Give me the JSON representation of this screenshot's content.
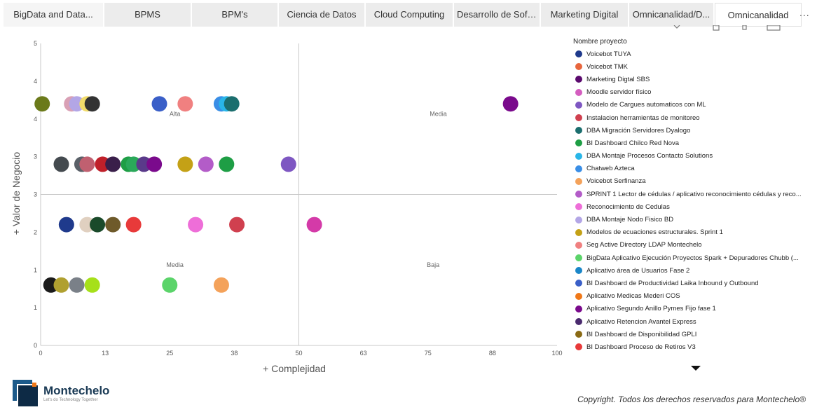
{
  "tabs": [
    {
      "label": "BigData and Data..."
    },
    {
      "label": "BPMS"
    },
    {
      "label": "BPM's"
    },
    {
      "label": "Ciencia de Datos"
    },
    {
      "label": "Cloud Computing"
    },
    {
      "label": "Desarrollo de Soft..."
    },
    {
      "label": "Marketing Digital"
    },
    {
      "label": "Omnicanalidad/D..."
    },
    {
      "label": "Omnicanalidad"
    }
  ],
  "more_label": "...",
  "legend": {
    "title": "Nombre proyecto",
    "items": [
      {
        "label": "Voicebot TUYA",
        "color": "#1f3a8c"
      },
      {
        "label": "Voicebot TMK",
        "color": "#e8663d"
      },
      {
        "label": "Marketing Digtal SBS",
        "color": "#5b0a6e"
      },
      {
        "label": "Moodle servidor físico",
        "color": "#d45dbf"
      },
      {
        "label": "Modelo de Cargues automaticos con ML",
        "color": "#7e57c2"
      },
      {
        "label": "Instalacion herramientas de monitoreo",
        "color": "#d0404f"
      },
      {
        "label": "DBA Migración Servidores Dyalogo",
        "color": "#1b6e6e"
      },
      {
        "label": "BI Dashboard Chilco Red Nova",
        "color": "#1e9e45"
      },
      {
        "label": "DBA Montaje Procesos Contacto Solutions",
        "color": "#29b6e8"
      },
      {
        "label": "Chatweb Azteca",
        "color": "#3a8ee6"
      },
      {
        "label": "Voicebot Serfinanza",
        "color": "#f4a25a"
      },
      {
        "label": "SPRINT 1 Lector de cédulas / aplicativo reconocimiento cédulas y reco...",
        "color": "#b35cc8"
      },
      {
        "label": "Reconocimiento de Cedulas",
        "color": "#ee6ed8"
      },
      {
        "label": "DBA Montaje Nodo Fisico BD",
        "color": "#b3a6e6"
      },
      {
        "label": "Modelos de ecuaciones estructurales. Sprint 1",
        "color": "#c4a116"
      },
      {
        "label": "Seg Active Directory LDAP Montechelo",
        "color": "#f08080"
      },
      {
        "label": "BigData Aplicativo Ejecución Proyectos Spark + Depuradores Chubb (...",
        "color": "#5bd46a"
      },
      {
        "label": "Aplicativo área de Usuarios Fase 2",
        "color": "#1a86c8"
      },
      {
        "label": "BI Dashboard de Productividad Laika Inbound y Outbound",
        "color": "#3a5fc8"
      },
      {
        "label": "Aplicativo Medicas Mederi COS",
        "color": "#f07818"
      },
      {
        "label": "Aplicativo Segundo Anillo Pymes Fijo fase 1",
        "color": "#7a0a8c"
      },
      {
        "label": "Aplicativo Retencion Avantel Express",
        "color": "#4a2a6e"
      },
      {
        "label": "BI Dashboard de Disponibilidad GPLI",
        "color": "#8a6a14"
      },
      {
        "label": "BI Dashboard Proceso de Retiros V3",
        "color": "#e83a3a"
      }
    ]
  },
  "chart_data": {
    "type": "scatter",
    "title": "",
    "xlabel": "+ Complejidad",
    "ylabel": "+ Valor de Negocio",
    "xlim": [
      0,
      100
    ],
    "ylim": [
      0,
      5
    ],
    "x_ticks": [
      "0",
      "13",
      "25",
      "38",
      "50",
      "63",
      "75",
      "88",
      "100"
    ],
    "y_ticks": [
      "0",
      "1",
      "1",
      "2",
      "3",
      "3",
      "4",
      "4",
      "5"
    ],
    "quadrant_x": 50,
    "quadrant_y": 2.5,
    "quadrant_labels": [
      {
        "text": "Alta",
        "x": 26,
        "y": 3.8
      },
      {
        "text": "Media",
        "x": 77,
        "y": 3.8
      },
      {
        "text": "Media",
        "x": 26,
        "y": 1.3
      },
      {
        "text": "Baja",
        "x": 76,
        "y": 1.3
      }
    ],
    "points": [
      {
        "x": 0.3,
        "y": 4.0,
        "color": "#6b7a1a"
      },
      {
        "x": 6,
        "y": 4.0,
        "color": "#d9a0b5"
      },
      {
        "x": 7,
        "y": 4.0,
        "color": "#b3a6e6"
      },
      {
        "x": 9,
        "y": 4.0,
        "color": "#f2dc6a"
      },
      {
        "x": 10,
        "y": 4.0,
        "color": "#333333"
      },
      {
        "x": 23,
        "y": 4.0,
        "color": "#3a5fc8"
      },
      {
        "x": 28,
        "y": 4.0,
        "color": "#f08080"
      },
      {
        "x": 35,
        "y": 4.0,
        "color": "#3a8ee6"
      },
      {
        "x": 36,
        "y": 4.0,
        "color": "#29b6e8"
      },
      {
        "x": 37,
        "y": 4.0,
        "color": "#1b6e6e"
      },
      {
        "x": 91,
        "y": 4.0,
        "color": "#7a0a8c"
      },
      {
        "x": 4,
        "y": 3.0,
        "color": "#444a4f"
      },
      {
        "x": 8,
        "y": 3.0,
        "color": "#5a6068"
      },
      {
        "x": 9,
        "y": 3.0,
        "color": "#c06070"
      },
      {
        "x": 12,
        "y": 3.0,
        "color": "#c0202a"
      },
      {
        "x": 14,
        "y": 3.0,
        "color": "#3a1f4a"
      },
      {
        "x": 17,
        "y": 3.0,
        "color": "#1e9e45"
      },
      {
        "x": 18,
        "y": 3.0,
        "color": "#2aa85a"
      },
      {
        "x": 20,
        "y": 3.0,
        "color": "#5a3a8a"
      },
      {
        "x": 22,
        "y": 3.0,
        "color": "#7a0a8c"
      },
      {
        "x": 28,
        "y": 3.0,
        "color": "#c4a116"
      },
      {
        "x": 32,
        "y": 3.0,
        "color": "#b35cc8"
      },
      {
        "x": 36,
        "y": 3.0,
        "color": "#1e9e45"
      },
      {
        "x": 48,
        "y": 3.0,
        "color": "#7e57c2"
      },
      {
        "x": 5,
        "y": 2.0,
        "color": "#1f3a8c"
      },
      {
        "x": 9,
        "y": 2.0,
        "color": "#e0d0c0"
      },
      {
        "x": 11,
        "y": 2.0,
        "color": "#1a4a2a"
      },
      {
        "x": 14,
        "y": 2.0,
        "color": "#6e5a2a"
      },
      {
        "x": 18,
        "y": 2.0,
        "color": "#e83a3a"
      },
      {
        "x": 30,
        "y": 2.0,
        "color": "#ee6ed8"
      },
      {
        "x": 38,
        "y": 2.0,
        "color": "#d0404f"
      },
      {
        "x": 53,
        "y": 2.0,
        "color": "#d43aa8"
      },
      {
        "x": 2,
        "y": 1.0,
        "color": "#1a1a1a"
      },
      {
        "x": 4,
        "y": 1.0,
        "color": "#b0a030"
      },
      {
        "x": 7,
        "y": 1.0,
        "color": "#7a8088"
      },
      {
        "x": 10,
        "y": 1.0,
        "color": "#a6e01a"
      },
      {
        "x": 25,
        "y": 1.0,
        "color": "#5bd46a"
      },
      {
        "x": 35,
        "y": 1.0,
        "color": "#f4a25a"
      }
    ],
    "grid": false,
    "legend_position": "right"
  },
  "footer": {
    "logo_name": "Montechelo",
    "logo_tag": "Let's do Technology Together",
    "copyright": "Copyright. Todos los derechos reservados para Montechelo®"
  }
}
